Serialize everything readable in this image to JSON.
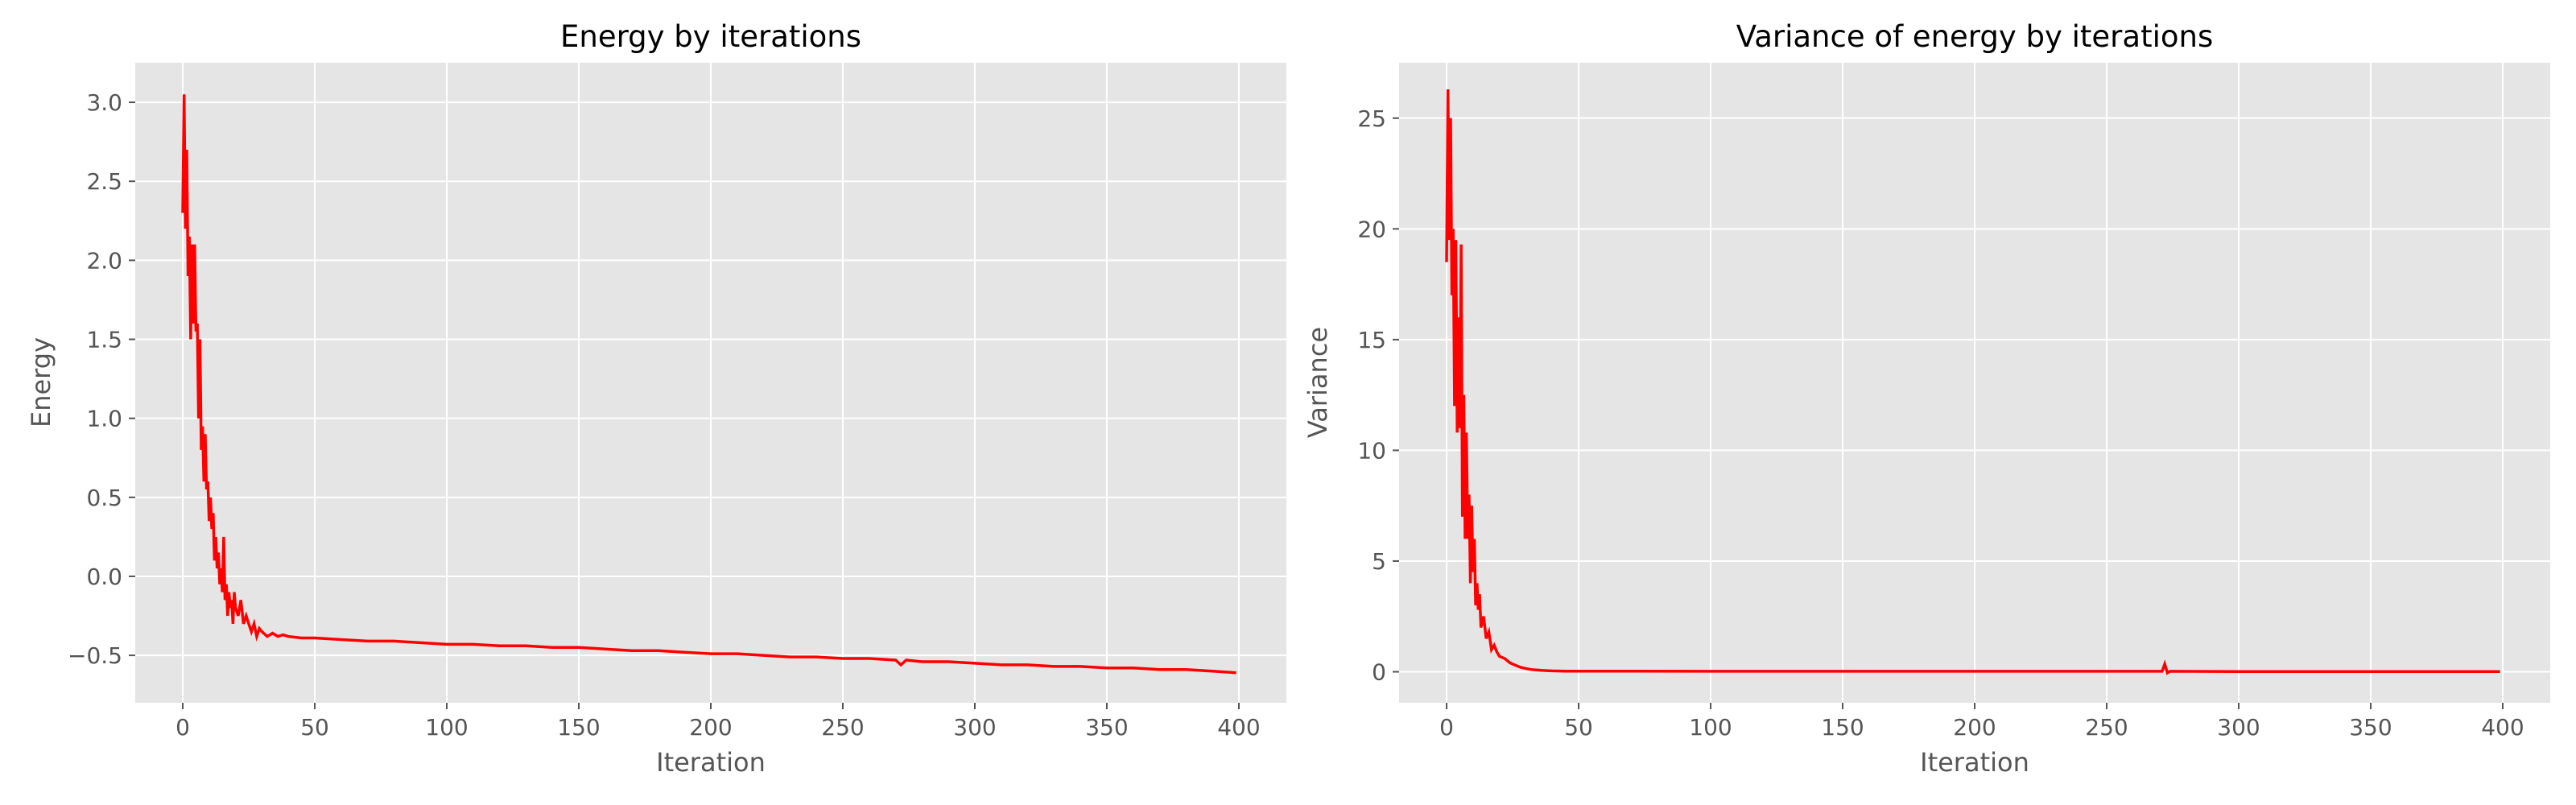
{
  "figure": {
    "background": "#ffffff",
    "panel_background": "#e5e5e5",
    "grid_color": "#ffffff",
    "tick_color": "#555555",
    "line_color": "#ff0000"
  },
  "chart_data": [
    {
      "type": "line",
      "title": "Energy by iterations",
      "xlabel": "Iteration",
      "ylabel": "Energy",
      "xlim": [
        -18,
        418
      ],
      "ylim": [
        -0.8,
        3.25
      ],
      "xticks": [
        0,
        50,
        100,
        150,
        200,
        250,
        300,
        350,
        400
      ],
      "xtick_labels": [
        "0",
        "50",
        "100",
        "150",
        "200",
        "250",
        "300",
        "350",
        "400"
      ],
      "yticks": [
        -0.5,
        0.0,
        0.5,
        1.0,
        1.5,
        2.0,
        2.5,
        3.0
      ],
      "ytick_labels": [
        "−0.5",
        "0.0",
        "0.5",
        "1.0",
        "1.5",
        "2.0",
        "2.5",
        "3.0"
      ],
      "grid": true,
      "series": [
        {
          "color": "#ff0000",
          "x": [
            0,
            0.5,
            1,
            1.5,
            2,
            2.5,
            3,
            3.5,
            4,
            4.5,
            5,
            5.5,
            6,
            6.5,
            7,
            7.5,
            8,
            8.5,
            9,
            9.5,
            10,
            10.5,
            11,
            11.5,
            12,
            12.5,
            13,
            13.5,
            14,
            14.5,
            15,
            15.5,
            16,
            16.5,
            17,
            17.5,
            18,
            18.5,
            19,
            19.5,
            20,
            21,
            22,
            23,
            24,
            25,
            26,
            27,
            28,
            29,
            30,
            32,
            34,
            36,
            38,
            40,
            45,
            50,
            60,
            70,
            80,
            90,
            100,
            110,
            120,
            130,
            140,
            150,
            160,
            170,
            180,
            190,
            200,
            210,
            220,
            230,
            240,
            250,
            260,
            270,
            272,
            274,
            280,
            290,
            300,
            310,
            320,
            330,
            340,
            350,
            360,
            370,
            380,
            390,
            399
          ],
          "y": [
            2.3,
            3.05,
            2.2,
            2.7,
            1.9,
            2.15,
            1.5,
            2.1,
            1.6,
            2.1,
            1.55,
            1.6,
            1.0,
            1.5,
            0.8,
            0.95,
            0.6,
            0.9,
            0.55,
            0.6,
            0.35,
            0.5,
            0.3,
            0.4,
            0.1,
            0.25,
            0.05,
            0.15,
            -0.05,
            0.05,
            -0.1,
            0.25,
            -0.15,
            -0.05,
            -0.25,
            -0.1,
            -0.2,
            -0.15,
            -0.3,
            -0.1,
            -0.2,
            -0.25,
            -0.15,
            -0.3,
            -0.25,
            -0.3,
            -0.35,
            -0.3,
            -0.38,
            -0.33,
            -0.35,
            -0.38,
            -0.36,
            -0.38,
            -0.37,
            -0.38,
            -0.39,
            -0.39,
            -0.4,
            -0.41,
            -0.41,
            -0.42,
            -0.43,
            -0.43,
            -0.44,
            -0.44,
            -0.45,
            -0.45,
            -0.46,
            -0.47,
            -0.47,
            -0.48,
            -0.49,
            -0.49,
            -0.5,
            -0.51,
            -0.51,
            -0.52,
            -0.52,
            -0.53,
            -0.56,
            -0.53,
            -0.54,
            -0.54,
            -0.55,
            -0.56,
            -0.56,
            -0.57,
            -0.57,
            -0.58,
            -0.58,
            -0.59,
            -0.59,
            -0.6,
            -0.61
          ]
        }
      ]
    },
    {
      "type": "line",
      "title": "Variance of energy by iterations",
      "xlabel": "Iteration",
      "ylabel": "Variance",
      "xlim": [
        -18,
        418
      ],
      "ylim": [
        -1.4,
        27.5
      ],
      "xticks": [
        0,
        50,
        100,
        150,
        200,
        250,
        300,
        350,
        400
      ],
      "xtick_labels": [
        "0",
        "50",
        "100",
        "150",
        "200",
        "250",
        "300",
        "350",
        "400"
      ],
      "yticks": [
        0,
        5,
        10,
        15,
        20,
        25
      ],
      "ytick_labels": [
        "0",
        "5",
        "10",
        "15",
        "20",
        "25"
      ],
      "grid": true,
      "series": [
        {
          "color": "#ff0000",
          "x": [
            0,
            0.5,
            1,
            1.5,
            2,
            2.5,
            3,
            3.5,
            4,
            4.5,
            5,
            5.5,
            6,
            6.5,
            7,
            7.5,
            8,
            8.5,
            9,
            9.5,
            10,
            10.5,
            11,
            11.5,
            12,
            12.5,
            13,
            14,
            15,
            16,
            17,
            18,
            19,
            20,
            22,
            24,
            26,
            28,
            30,
            32,
            34,
            36,
            38,
            40,
            45,
            50,
            100,
            150,
            200,
            250,
            271,
            272,
            273,
            274,
            300,
            350,
            399
          ],
          "y": [
            18.5,
            26.3,
            19.5,
            25.0,
            17.0,
            20.0,
            12.0,
            19.5,
            10.8,
            16.0,
            11.0,
            19.3,
            7.0,
            12.5,
            6.0,
            10.8,
            6.0,
            8.0,
            4.0,
            7.5,
            4.5,
            6.0,
            3.0,
            4.0,
            2.8,
            3.5,
            2.0,
            2.5,
            1.5,
            1.8,
            1.0,
            1.2,
            0.9,
            0.7,
            0.6,
            0.4,
            0.3,
            0.2,
            0.15,
            0.1,
            0.08,
            0.06,
            0.05,
            0.04,
            0.03,
            0.03,
            0.02,
            0.02,
            0.02,
            0.02,
            0.02,
            0.35,
            -0.05,
            0.02,
            0.01,
            0.01,
            0.01
          ]
        }
      ]
    }
  ]
}
